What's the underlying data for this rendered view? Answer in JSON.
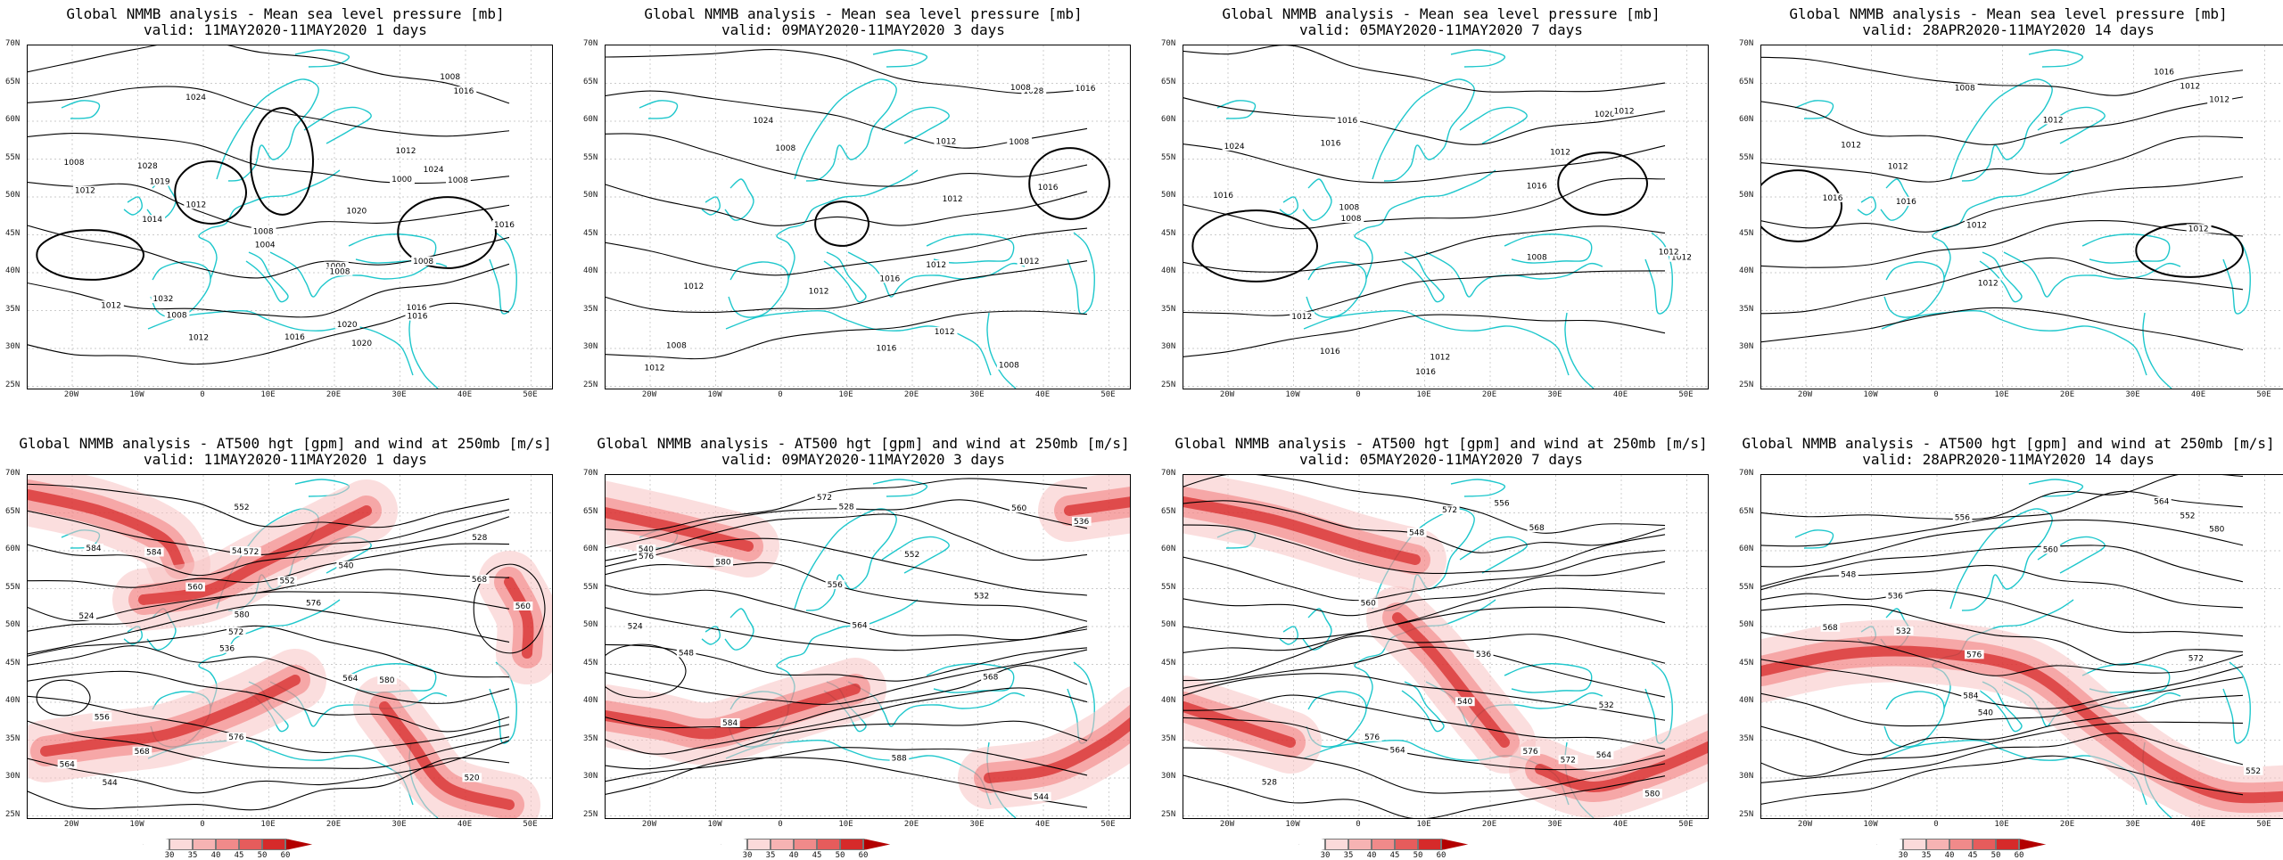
{
  "colors": {
    "coast": "#1ec7cc",
    "contour": "#000000",
    "wind_light": "#f7c2c2",
    "wind_mid": "#ef6464",
    "wind_dark": "#cc0000"
  },
  "axes": {
    "y_labels": [
      "70N",
      "65N",
      "60N",
      "55N",
      "50N",
      "45N",
      "40N",
      "35N",
      "30N",
      "25N"
    ],
    "x_labels": [
      "20W",
      "10W",
      "0",
      "10E",
      "20E",
      "30E",
      "40E",
      "50E"
    ]
  },
  "top_row": [
    {
      "title": "Global NMMB analysis - Mean sea level pressure [mb]",
      "valid": "valid: 11MAY2020-11MAY2020  1 days",
      "labels": [
        "1020",
        "1024",
        "1032",
        "1028",
        "1024",
        "1020",
        "1016",
        "1012",
        "1004",
        "1008",
        "1012",
        "1008",
        "1008",
        "1000",
        "1000",
        "1008",
        "1012",
        "1016",
        "1008",
        "1008",
        "1016",
        "1008",
        "1012",
        "1016",
        "1020",
        "1012",
        "1014",
        "1019",
        "1016"
      ]
    },
    {
      "title": "Global NMMB analysis - Mean sea level pressure [mb]",
      "valid": "valid: 09MAY2020-11MAY2020  3 days",
      "labels": [
        "1028",
        "1024",
        "1016",
        "1012",
        "1008",
        "1016",
        "1008",
        "1008",
        "1012",
        "1012",
        "1016",
        "1012",
        "1008",
        "1012",
        "1016",
        "1012",
        "1012",
        "1012",
        "1008"
      ]
    },
    {
      "title": "Global NMMB analysis - Mean sea level pressure [mb]",
      "valid": "valid: 05MAY2020-11MAY2020  7 days",
      "labels": [
        "1024",
        "1016",
        "1016",
        "1012",
        "1020",
        "1016",
        "1008",
        "1008",
        "1012",
        "1012",
        "1012",
        "1016",
        "1012",
        "1012",
        "1016",
        "1016",
        "1008"
      ]
    },
    {
      "title": "Global NMMB analysis - Mean sea level pressure [mb]",
      "valid": "valid: 28APR2020-11MAY2020  14 days",
      "labels": [
        "1016",
        "1012",
        "1012",
        "1012",
        "1012",
        "1008",
        "1012",
        "1016",
        "1016",
        "1012",
        "1012",
        "1012"
      ]
    }
  ],
  "bottom_row": [
    {
      "title": "Global NMMB analysis - AT500 hgt [gpm] and wind at 250mb [m/s]",
      "valid": "valid: 11MAY2020-11MAY2020  1 days",
      "labels": [
        "520",
        "524",
        "528",
        "536",
        "540",
        "544",
        "548",
        "552",
        "556",
        "560",
        "564",
        "568",
        "572",
        "576",
        "580",
        "584",
        "552",
        "560",
        "564",
        "568",
        "572",
        "576",
        "580",
        "584"
      ]
    },
    {
      "title": "Global NMMB analysis - AT500 hgt [gpm] and wind at 250mb [m/s]",
      "valid": "valid: 09MAY2020-11MAY2020  3 days",
      "labels": [
        "524",
        "528",
        "532",
        "536",
        "540",
        "544",
        "548",
        "552",
        "556",
        "560",
        "564",
        "568",
        "572",
        "576",
        "580",
        "584",
        "588"
      ]
    },
    {
      "title": "Global NMMB analysis - AT500 hgt [gpm] and wind at 250mb [m/s]",
      "valid": "valid: 05MAY2020-11MAY2020  7 days",
      "labels": [
        "528",
        "532",
        "536",
        "540",
        "548",
        "556",
        "564",
        "568",
        "572",
        "576",
        "580",
        "560",
        "564",
        "572",
        "576"
      ]
    },
    {
      "title": "Global NMMB analysis - AT500 hgt [gpm] and wind at 250mb [m/s]",
      "valid": "valid: 28APR2020-11MAY2020  14 days",
      "labels": [
        "532",
        "536",
        "540",
        "548",
        "552",
        "556",
        "560",
        "564",
        "568",
        "572",
        "576",
        "580",
        "584",
        "552"
      ]
    }
  ],
  "colorbar": {
    "ticks": [
      "30",
      "35",
      "40",
      "45",
      "50",
      "60"
    ],
    "colors": [
      "#ffffff",
      "#fbdada",
      "#f6b3b3",
      "#f08a8a",
      "#e65c5c",
      "#d62a2a",
      "#b30000"
    ]
  }
}
